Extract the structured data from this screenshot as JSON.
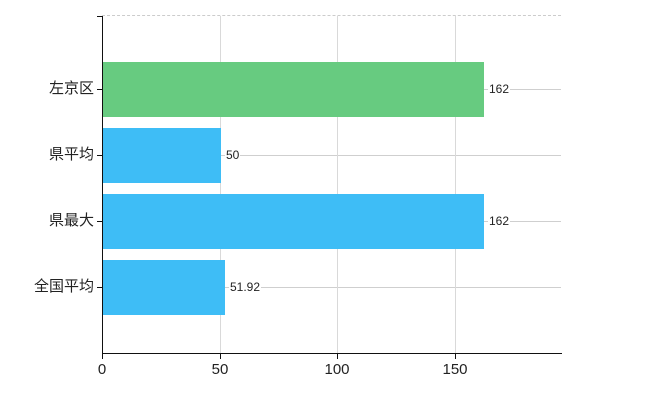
{
  "chart_data": {
    "type": "bar",
    "orientation": "horizontal",
    "title": "",
    "xlabel": "",
    "ylabel": "",
    "categories": [
      "左京区",
      "県平均",
      "県最大",
      "全国平均"
    ],
    "series": [
      {
        "name": "",
        "values": [
          162,
          50,
          162,
          51.92
        ]
      }
    ],
    "value_labels": [
      "162",
      "50",
      "162",
      "51.92"
    ],
    "bar_colors": [
      "#67cb80",
      "#3ebdf6",
      "#3ebdf6",
      "#3ebdf6"
    ],
    "x_tick_labels": [
      "0",
      "50",
      "100",
      "150"
    ],
    "x_tick_values": [
      0,
      50,
      100,
      150
    ],
    "xlim": [
      0,
      195
    ],
    "grid": "on",
    "legend_position": "none",
    "colors": {
      "highlight_bar": "#67cb80",
      "default_bar": "#3ebdf6",
      "axis": "#111111",
      "gridline": "#d9d9d9",
      "row_gridline": "#cfcfcf",
      "top_border_dashed": "#cccccc",
      "text": "#222222",
      "background": "#ffffff"
    }
  }
}
